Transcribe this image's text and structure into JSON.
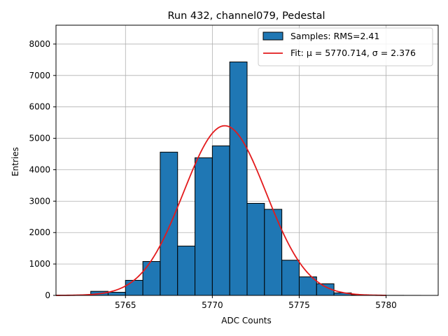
{
  "chart_data": {
    "type": "bar",
    "title": "Run 432, channel079, Pedestal",
    "xlabel": "ADC Counts",
    "ylabel": "Entries",
    "xlim": [
      5761,
      5783
    ],
    "ylim": [
      0,
      8600
    ],
    "xticks": [
      5765,
      5770,
      5775,
      5780
    ],
    "yticks": [
      0,
      1000,
      2000,
      3000,
      4000,
      5000,
      6000,
      7000,
      8000
    ],
    "grid": true,
    "legend_position": "top-right",
    "histogram": {
      "name": "Samples: RMS=2.41",
      "color": "#1f77b4",
      "edge_color": "#000000",
      "bin_edges": [
        5763,
        5764,
        5765,
        5766,
        5767,
        5768,
        5769,
        5770,
        5771,
        5772,
        5773,
        5774,
        5775,
        5776,
        5777,
        5778,
        5779,
        5780,
        5781,
        5782
      ],
      "counts": [
        130,
        100,
        480,
        1080,
        4560,
        1570,
        4380,
        4760,
        7430,
        2930,
        2740,
        1120,
        590,
        370,
        80,
        20,
        5,
        2,
        1
      ]
    },
    "fit": {
      "name": "Fit: μ = 5770.714, σ = 2.376",
      "color": "#e31a1c",
      "mu": 5770.714,
      "sigma": 2.376,
      "amplitude": 5400,
      "x_range": [
        5761,
        5780
      ]
    }
  }
}
